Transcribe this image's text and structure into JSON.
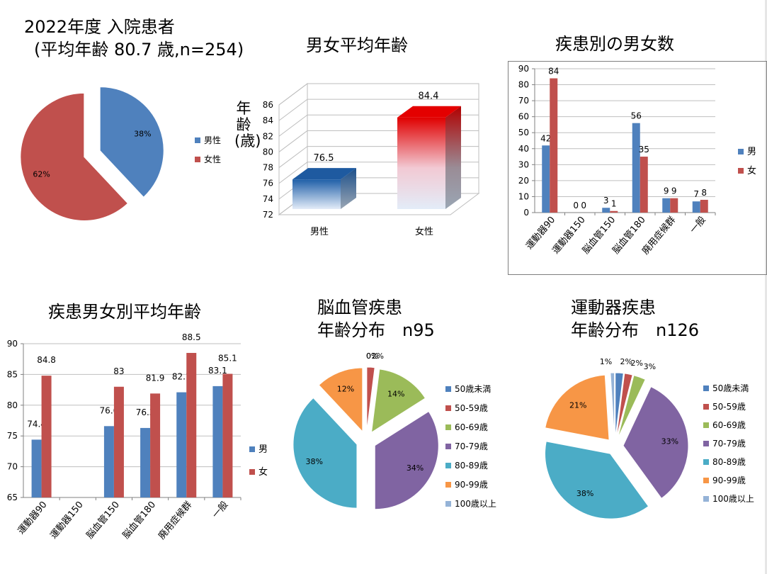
{
  "colors": {
    "male": "#4f81bd",
    "female": "#c0504d",
    "c3": "#9bbb59",
    "c4": "#8064a2",
    "c5": "#4bacc6",
    "c6": "#f79646",
    "c7": "#95b3d7"
  },
  "overall": {
    "title_line1": "2022年度 入院患者",
    "title_line2": "(平均年齢 80.7 歳,n=254)"
  },
  "chart_data": [
    {
      "id": "gender_pie",
      "type": "pie",
      "labels": [
        "男性",
        "女性"
      ],
      "values": [
        38,
        62
      ],
      "value_labels": [
        "38%",
        "62%"
      ],
      "legend": "right"
    },
    {
      "id": "avg_age_3d",
      "type": "bar",
      "title": "男女平均年齢",
      "ylabel": "年齢(歳)",
      "categories": [
        "男性",
        "女性"
      ],
      "values": [
        76.5,
        84.4
      ],
      "value_labels": [
        "76.5",
        "84.4"
      ],
      "ylim": [
        72,
        86
      ],
      "yticks": [
        "72",
        "74",
        "76",
        "78",
        "80",
        "82",
        "84",
        "86"
      ]
    },
    {
      "id": "disease_counts",
      "type": "bar",
      "title": "疾患別の男女数",
      "categories": [
        "運動器90",
        "運動器150",
        "脳血管150",
        "脳血管180",
        "廃用症候群",
        "一般"
      ],
      "series": [
        {
          "name": "男",
          "values": [
            42,
            0,
            3,
            56,
            9,
            7
          ],
          "labels": [
            "42",
            "0",
            "3",
            "56",
            "9",
            "7"
          ]
        },
        {
          "name": "女",
          "values": [
            84,
            0,
            1,
            35,
            9,
            8
          ],
          "labels": [
            "84",
            "0",
            "1",
            "35",
            "9",
            "8"
          ]
        }
      ],
      "ylim": [
        0,
        90
      ],
      "yticks": [
        "0",
        "10",
        "20",
        "30",
        "40",
        "50",
        "60",
        "70",
        "80",
        "90"
      ],
      "grid": true,
      "legend": "right"
    },
    {
      "id": "disease_avg_age",
      "type": "bar",
      "title": "疾患男女別平均年齢",
      "categories": [
        "運動器90",
        "運動器150",
        "脳血管150",
        "脳血管180",
        "廃用症候群",
        "一般"
      ],
      "series": [
        {
          "name": "男",
          "values": [
            74.4,
            null,
            76.6,
            76.3,
            82.1,
            83.1
          ],
          "labels": [
            "74.4",
            "",
            "76.6",
            "76.3",
            "82.1",
            "83.1"
          ]
        },
        {
          "name": "女",
          "values": [
            84.8,
            null,
            83,
            81.9,
            88.5,
            85.1
          ],
          "labels": [
            "84.8",
            "",
            "83",
            "81.9",
            "88.5",
            "85.1"
          ]
        }
      ],
      "ylim": [
        65,
        90
      ],
      "yticks": [
        "65",
        "70",
        "75",
        "80",
        "85",
        "90"
      ],
      "grid": true,
      "legend": "right"
    },
    {
      "id": "cerebro_age_dist",
      "type": "pie",
      "title_line1": "脳血管疾患",
      "title_line2": "年齢分布　n95",
      "labels": [
        "50歳未満",
        "50-59歳",
        "60-69歳",
        "70-79歳",
        "80-89歳",
        "90-99歳",
        "100歳以上"
      ],
      "values": [
        0,
        2,
        14,
        34,
        38,
        12,
        0
      ],
      "value_labels": [
        "0%",
        "2%",
        "14%",
        "34%",
        "38%",
        "12%",
        "0%"
      ],
      "legend": "right"
    },
    {
      "id": "motor_age_dist",
      "type": "pie",
      "title_line1": "運動器疾患",
      "title_line2": "年齢分布　n126",
      "labels": [
        "50歳未満",
        "50-59歳",
        "60-69歳",
        "70-79歳",
        "80-89歳",
        "90-99歳",
        "100歳以上"
      ],
      "values": [
        2,
        2,
        3,
        33,
        38,
        21,
        1
      ],
      "value_labels": [
        "2%",
        "2%",
        "3%",
        "33%",
        "38%",
        "21%",
        "1%"
      ],
      "legend": "right"
    }
  ]
}
